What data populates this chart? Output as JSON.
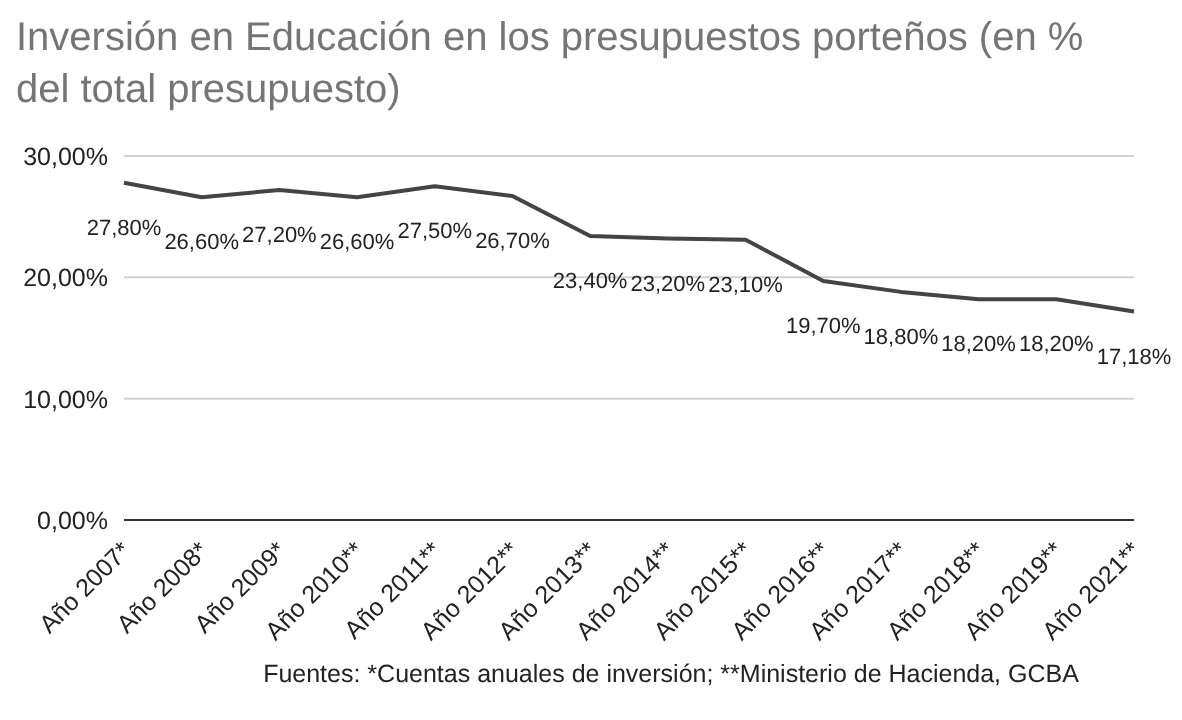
{
  "chart_data": {
    "type": "line",
    "title": "Inversión en Educación en los presupuestos porteños (en % del total presupuesto)",
    "categories": [
      "Año 2007*",
      "Año 2008*",
      "Año 2009*",
      "Año 2010**",
      "Año 2011**",
      "Año 2012**",
      "Año 2013**",
      "Año 2014**",
      "Año 2015**",
      "Año 2016**",
      "Año 2017**",
      "Año 2018**",
      "Año 2019**",
      "Año 2021**"
    ],
    "series": [
      {
        "color": "#444444",
        "values": [
          27.8,
          26.6,
          27.2,
          26.6,
          27.5,
          26.7,
          23.4,
          23.2,
          23.1,
          19.7,
          18.8,
          18.2,
          18.2,
          17.18
        ],
        "value_labels": [
          "27,80%",
          "26,60%",
          "27,20%",
          "26,60%",
          "27,50%",
          "26,70%",
          "23,40%",
          "23,20%",
          "23,10%",
          "19,70%",
          "18,80%",
          "18,20%",
          "18,20%",
          "17,18%"
        ]
      }
    ],
    "ylim": [
      0,
      30
    ],
    "yticks": [
      {
        "value": 0,
        "label": "0,00%"
      },
      {
        "value": 10,
        "label": "10,00%"
      },
      {
        "value": 20,
        "label": "20,00%"
      },
      {
        "value": 30,
        "label": "30,00%"
      }
    ],
    "grid": "y",
    "marker": "none",
    "line_style": "solid",
    "annotations": [
      "Fuentes: *Cuentas anuales de inversión; **Ministerio de Hacienda, GCBA"
    ]
  }
}
